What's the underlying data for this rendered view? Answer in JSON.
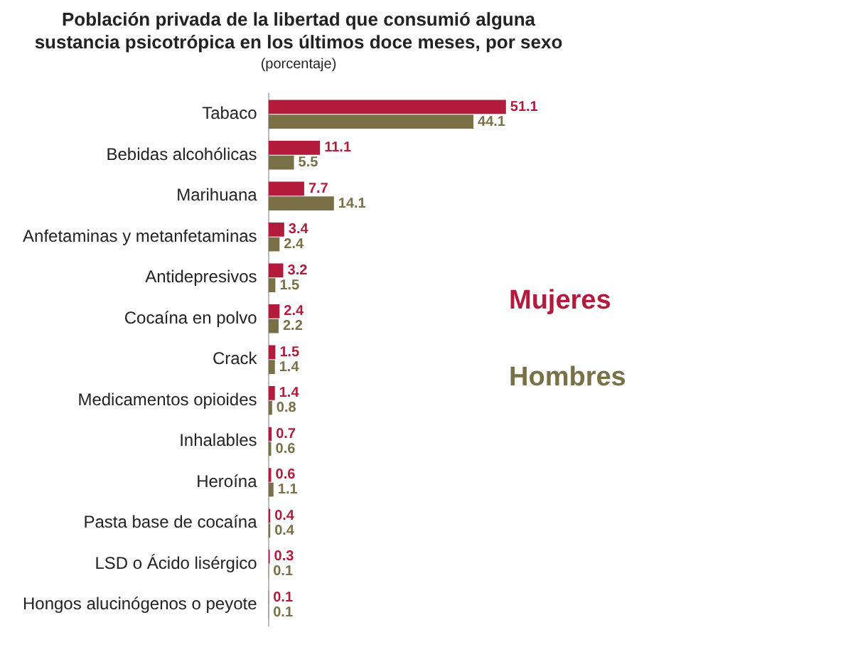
{
  "chart_data": {
    "type": "bar",
    "orientation": "horizontal",
    "title": "Población privada de la libertad que consumió alguna\nsustancia psicotrópica en los últimos doce meses, por sexo",
    "subtitle": "(porcentaje)",
    "categories": [
      "Tabaco",
      "Bebidas alcohólicas",
      "Marihuana",
      "Anfetaminas y metanfetaminas",
      "Antidepresivos",
      "Cocaína en polvo",
      "Crack",
      "Medicamentos opioides",
      "Inhalables",
      "Heroína",
      "Pasta base de cocaína",
      "LSD o Ácido lisérgico",
      "Hongos alucinógenos o peyote"
    ],
    "series": [
      {
        "name": "Mujeres",
        "color": "#b31b3c",
        "values": [
          51.1,
          11.1,
          7.7,
          3.4,
          3.2,
          2.4,
          1.5,
          1.4,
          0.7,
          0.6,
          0.4,
          0.3,
          0.1
        ]
      },
      {
        "name": "Hombres",
        "color": "#7a7048",
        "values": [
          44.1,
          5.5,
          14.1,
          2.4,
          1.5,
          2.2,
          1.4,
          0.8,
          0.6,
          1.1,
          0.4,
          0.1,
          0.1
        ]
      }
    ],
    "data_labels": true,
    "grid": false,
    "legend": "right"
  }
}
